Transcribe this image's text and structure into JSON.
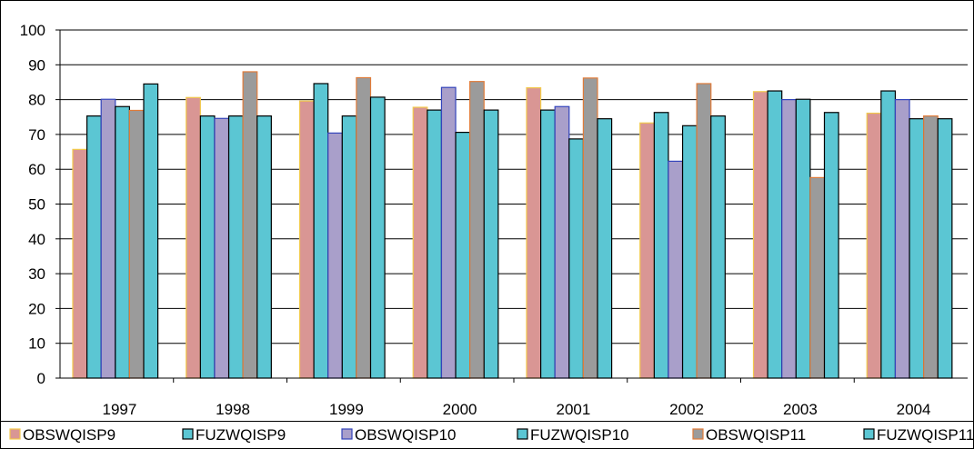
{
  "chart_data": {
    "type": "bar",
    "categories": [
      "1997",
      "1998",
      "1999",
      "2000",
      "2001",
      "2002",
      "2003",
      "2004"
    ],
    "ylim": [
      0,
      100
    ],
    "yticks": [
      0,
      10,
      20,
      30,
      40,
      50,
      60,
      70,
      80,
      90,
      100
    ],
    "grid": true,
    "legend_position": "bottom",
    "title": "",
    "xlabel": "",
    "ylabel": "",
    "series": [
      {
        "name": "OBSWQISP9",
        "fill": "#d99694",
        "stroke": "#f2c94c",
        "values": [
          65.7,
          80.6,
          79.6,
          77.8,
          83.4,
          73.3,
          82.3,
          76.1
        ]
      },
      {
        "name": "FUZWQISP9",
        "fill": "#5bc6d3",
        "stroke": "#000000",
        "values": [
          75.3,
          75.3,
          84.6,
          77.0,
          77.0,
          76.3,
          82.5,
          82.5
        ]
      },
      {
        "name": "OBSWQISP10",
        "fill": "#a99fca",
        "stroke": "#3344bb",
        "values": [
          80.1,
          74.6,
          70.4,
          83.5,
          78.0,
          62.3,
          80.0,
          80.0
        ]
      },
      {
        "name": "FUZWQISP10",
        "fill": "#5bc6d3",
        "stroke": "#000000",
        "values": [
          78.0,
          75.3,
          75.3,
          70.6,
          68.7,
          72.5,
          80.1,
          74.5
        ]
      },
      {
        "name": "OBSWQISP11",
        "fill": "#9b9b9b",
        "stroke": "#e07b39",
        "values": [
          76.9,
          88.0,
          86.3,
          85.2,
          86.2,
          84.6,
          57.6,
          75.3
        ]
      },
      {
        "name": "FUZWQISP11",
        "fill": "#5bc6d3",
        "stroke": "#000000",
        "values": [
          84.5,
          75.3,
          80.7,
          77.0,
          74.5,
          75.3,
          76.3,
          74.5
        ]
      }
    ]
  }
}
